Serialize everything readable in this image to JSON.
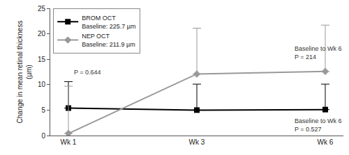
{
  "chart_data": {
    "type": "line",
    "categories": [
      "Wk 1",
      "Wk 3",
      "Wk 6"
    ],
    "y_label": "Change in mean retinal thickness\n(µm)",
    "ylim": [
      0,
      25
    ],
    "yticks": [
      0,
      5,
      10,
      15,
      20,
      25
    ],
    "grid": false,
    "legend": "top left",
    "series": [
      {
        "name": "BROM OCT",
        "note": "Baseline: 225.7 µm",
        "color": "#000000",
        "marker": "square",
        "values": [
          5.4,
          5.0,
          5.1
        ],
        "error": [
          5.2,
          5.1,
          5.0
        ]
      },
      {
        "name": "NEP OCT",
        "note": "Baseline: 211.9 µm",
        "color": "#999999",
        "marker": "diamond",
        "values": [
          0.4,
          12.1,
          12.6
        ],
        "error": [
          9.3,
          9.0,
          9.1
        ]
      }
    ],
    "annotations": [
      "P = 0.644",
      "Baseline to Wk 6\nP = 214",
      "Baseline to Wk 6\nP = 0.527"
    ]
  }
}
